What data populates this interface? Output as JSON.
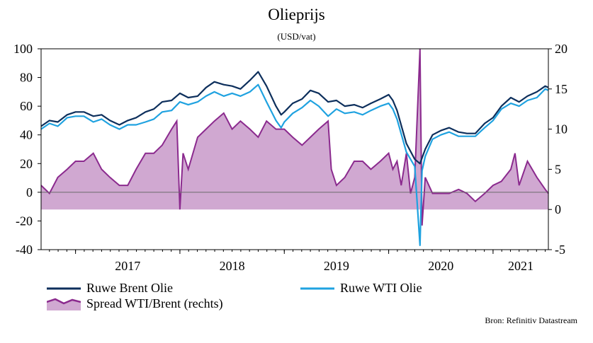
{
  "chart_data": {
    "type": "line",
    "title": "Olieprijs",
    "subtitle": "(USD/vat)",
    "source": "Bron: Refinitiv Datastream",
    "x_tick_labels": [
      "2017",
      "2018",
      "2019",
      "2020",
      "2021"
    ],
    "x_range": [
      2016.67,
      2021.53
    ],
    "y_left": {
      "range": [
        -40,
        100
      ],
      "ticks": [
        100,
        80,
        60,
        40,
        20,
        0,
        -20,
        -40
      ]
    },
    "y_right": {
      "range": [
        -5,
        20
      ],
      "ticks": [
        20,
        15,
        10,
        5,
        0,
        -5
      ]
    },
    "grid": false,
    "legend_position": "bottom",
    "series": [
      {
        "name": "Ruwe Brent Olie",
        "axis": "left",
        "color": "#0d2f5c",
        "points": [
          [
            2016.67,
            46
          ],
          [
            2016.75,
            50
          ],
          [
            2016.83,
            49
          ],
          [
            2016.92,
            54
          ],
          [
            2017.0,
            56
          ],
          [
            2017.08,
            56
          ],
          [
            2017.17,
            53
          ],
          [
            2017.25,
            54
          ],
          [
            2017.33,
            50
          ],
          [
            2017.42,
            47
          ],
          [
            2017.5,
            50
          ],
          [
            2017.58,
            52
          ],
          [
            2017.67,
            56
          ],
          [
            2017.75,
            58
          ],
          [
            2017.83,
            63
          ],
          [
            2017.92,
            64
          ],
          [
            2018.0,
            69
          ],
          [
            2018.08,
            66
          ],
          [
            2018.17,
            67
          ],
          [
            2018.25,
            73
          ],
          [
            2018.33,
            77
          ],
          [
            2018.42,
            75
          ],
          [
            2018.5,
            74
          ],
          [
            2018.58,
            72
          ],
          [
            2018.67,
            78
          ],
          [
            2018.75,
            84
          ],
          [
            2018.83,
            74
          ],
          [
            2018.92,
            60
          ],
          [
            2018.97,
            54
          ],
          [
            2019.0,
            56
          ],
          [
            2019.08,
            62
          ],
          [
            2019.17,
            65
          ],
          [
            2019.25,
            71
          ],
          [
            2019.33,
            69
          ],
          [
            2019.42,
            63
          ],
          [
            2019.5,
            64
          ],
          [
            2019.58,
            60
          ],
          [
            2019.67,
            61
          ],
          [
            2019.75,
            59
          ],
          [
            2019.83,
            62
          ],
          [
            2019.92,
            65
          ],
          [
            2020.0,
            68
          ],
          [
            2020.04,
            64
          ],
          [
            2020.08,
            57
          ],
          [
            2020.17,
            34
          ],
          [
            2020.25,
            23
          ],
          [
            2020.3,
            20
          ],
          [
            2020.35,
            30
          ],
          [
            2020.42,
            40
          ],
          [
            2020.5,
            43
          ],
          [
            2020.58,
            45
          ],
          [
            2020.67,
            42
          ],
          [
            2020.75,
            41
          ],
          [
            2020.83,
            41
          ],
          [
            2020.92,
            48
          ],
          [
            2021.0,
            52
          ],
          [
            2021.08,
            60
          ],
          [
            2021.17,
            66
          ],
          [
            2021.25,
            63
          ],
          [
            2021.33,
            67
          ],
          [
            2021.42,
            70
          ],
          [
            2021.5,
            74
          ],
          [
            2021.53,
            73
          ]
        ]
      },
      {
        "name": "Ruwe WTI Olie",
        "axis": "left",
        "color": "#1fa2e0",
        "points": [
          [
            2016.67,
            44
          ],
          [
            2016.75,
            48
          ],
          [
            2016.83,
            46
          ],
          [
            2016.92,
            52
          ],
          [
            2017.0,
            53
          ],
          [
            2017.08,
            53
          ],
          [
            2017.17,
            49
          ],
          [
            2017.25,
            51
          ],
          [
            2017.33,
            47
          ],
          [
            2017.42,
            44
          ],
          [
            2017.5,
            47
          ],
          [
            2017.58,
            47
          ],
          [
            2017.67,
            49
          ],
          [
            2017.75,
            51
          ],
          [
            2017.83,
            56
          ],
          [
            2017.92,
            57
          ],
          [
            2018.0,
            63
          ],
          [
            2018.08,
            61
          ],
          [
            2018.17,
            63
          ],
          [
            2018.25,
            67
          ],
          [
            2018.33,
            70
          ],
          [
            2018.42,
            67
          ],
          [
            2018.5,
            69
          ],
          [
            2018.58,
            67
          ],
          [
            2018.67,
            70
          ],
          [
            2018.75,
            75
          ],
          [
            2018.83,
            63
          ],
          [
            2018.92,
            50
          ],
          [
            2018.97,
            45
          ],
          [
            2019.0,
            49
          ],
          [
            2019.08,
            55
          ],
          [
            2019.17,
            59
          ],
          [
            2019.25,
            64
          ],
          [
            2019.33,
            60
          ],
          [
            2019.42,
            53
          ],
          [
            2019.5,
            58
          ],
          [
            2019.58,
            55
          ],
          [
            2019.67,
            56
          ],
          [
            2019.75,
            54
          ],
          [
            2019.83,
            57
          ],
          [
            2019.92,
            60
          ],
          [
            2020.0,
            62
          ],
          [
            2020.04,
            58
          ],
          [
            2020.08,
            51
          ],
          [
            2020.17,
            28
          ],
          [
            2020.25,
            18
          ],
          [
            2020.3,
            -37
          ],
          [
            2020.32,
            15
          ],
          [
            2020.35,
            25
          ],
          [
            2020.42,
            37
          ],
          [
            2020.5,
            40
          ],
          [
            2020.58,
            42
          ],
          [
            2020.67,
            39
          ],
          [
            2020.75,
            39
          ],
          [
            2020.83,
            39
          ],
          [
            2020.92,
            45
          ],
          [
            2021.0,
            50
          ],
          [
            2021.08,
            58
          ],
          [
            2021.17,
            62
          ],
          [
            2021.25,
            60
          ],
          [
            2021.33,
            64
          ],
          [
            2021.42,
            66
          ],
          [
            2021.5,
            72
          ],
          [
            2021.53,
            71
          ]
        ]
      },
      {
        "name": "Spread WTI/Brent (rechts)",
        "axis": "right",
        "color": "#8b2a8e",
        "fill": "#d0a8d1",
        "baseline": 0,
        "points": [
          [
            2016.67,
            3
          ],
          [
            2016.75,
            2
          ],
          [
            2016.83,
            4
          ],
          [
            2016.92,
            5
          ],
          [
            2017.0,
            6
          ],
          [
            2017.08,
            6
          ],
          [
            2017.17,
            7
          ],
          [
            2017.25,
            5
          ],
          [
            2017.33,
            4
          ],
          [
            2017.42,
            3
          ],
          [
            2017.5,
            3
          ],
          [
            2017.58,
            5
          ],
          [
            2017.67,
            7
          ],
          [
            2017.75,
            7
          ],
          [
            2017.83,
            8
          ],
          [
            2017.92,
            10
          ],
          [
            2017.97,
            11
          ],
          [
            2018.0,
            0
          ],
          [
            2018.03,
            7
          ],
          [
            2018.08,
            5
          ],
          [
            2018.17,
            9
          ],
          [
            2018.25,
            10
          ],
          [
            2018.33,
            11
          ],
          [
            2018.42,
            12
          ],
          [
            2018.5,
            10
          ],
          [
            2018.58,
            11
          ],
          [
            2018.67,
            10
          ],
          [
            2018.75,
            9
          ],
          [
            2018.83,
            11
          ],
          [
            2018.92,
            10
          ],
          [
            2019.0,
            10
          ],
          [
            2019.08,
            9
          ],
          [
            2019.17,
            8
          ],
          [
            2019.25,
            9
          ],
          [
            2019.33,
            10
          ],
          [
            2019.42,
            11
          ],
          [
            2019.45,
            5
          ],
          [
            2019.5,
            3
          ],
          [
            2019.58,
            4
          ],
          [
            2019.67,
            6
          ],
          [
            2019.75,
            6
          ],
          [
            2019.83,
            5
          ],
          [
            2019.92,
            6
          ],
          [
            2020.0,
            7
          ],
          [
            2020.04,
            5
          ],
          [
            2020.08,
            6
          ],
          [
            2020.12,
            3
          ],
          [
            2020.17,
            7
          ],
          [
            2020.21,
            2
          ],
          [
            2020.25,
            4
          ],
          [
            2020.3,
            20
          ],
          [
            2020.32,
            -2
          ],
          [
            2020.35,
            4
          ],
          [
            2020.42,
            2
          ],
          [
            2020.5,
            2
          ],
          [
            2020.58,
            2
          ],
          [
            2020.67,
            2.5
          ],
          [
            2020.75,
            2
          ],
          [
            2020.83,
            1
          ],
          [
            2020.92,
            2
          ],
          [
            2021.0,
            3
          ],
          [
            2021.08,
            3.5
          ],
          [
            2021.17,
            5
          ],
          [
            2021.21,
            7
          ],
          [
            2021.25,
            3
          ],
          [
            2021.33,
            6
          ],
          [
            2021.42,
            4
          ],
          [
            2021.5,
            2.5
          ],
          [
            2021.53,
            2
          ]
        ]
      }
    ]
  }
}
